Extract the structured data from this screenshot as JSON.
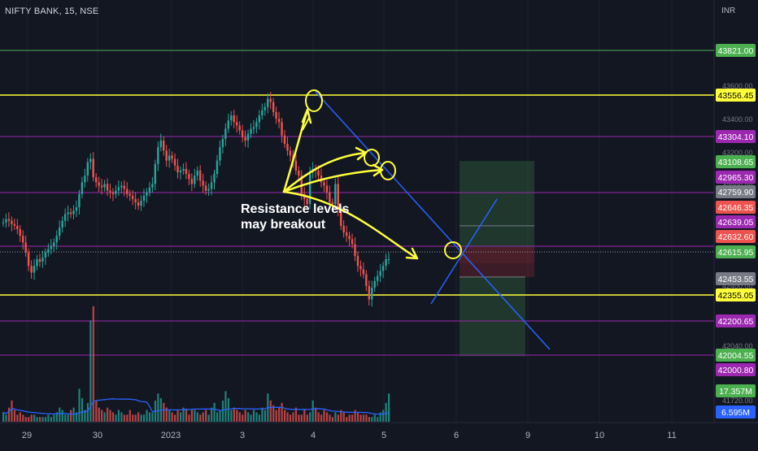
{
  "header": {
    "symbol": "NIFTY BANK, 15, NSE",
    "currency": "INR"
  },
  "annotation": {
    "line1": "Resistance levels",
    "line2": "may breakout"
  },
  "colors": {
    "background": "#131722",
    "up": "#26a69a",
    "down": "#ef5350",
    "yellow": "#ffff3b",
    "purple": "#9c27b0",
    "green": "#4caf50",
    "trend": "#2962ff",
    "volume_ma": "#2962ff"
  },
  "chart_data": {
    "type": "candlestick",
    "title": "NIFTY BANK, 15, NSE",
    "ylim": [
      41690,
      43690
    ],
    "x_ticks": [
      "29",
      "30",
      "2023",
      "3",
      "4",
      "5",
      "6",
      "9",
      "10",
      "11"
    ],
    "y_ticks": [
      "43600.00",
      "43400.00",
      "43200.00",
      "43000.00",
      "42800.00",
      "42600.00",
      "42400.00",
      "42200.00",
      "42040.00",
      "41880.00",
      "41720.00"
    ],
    "price_labels": [
      {
        "value": "43821.00",
        "color": "#4caf50",
        "text_color": "#ffffff",
        "line": "#4caf50"
      },
      {
        "value": "43556.45",
        "color": "#ffff3b",
        "text_color": "#000000",
        "line": "#ffff3b"
      },
      {
        "value": "43304.10",
        "color": "#9c27b0",
        "text_color": "#ffffff",
        "line": "#9c27b0"
      },
      {
        "value": "43108.65",
        "color": "#4caf50",
        "text_color": "#ffffff",
        "line": null
      },
      {
        "value": "42965.30",
        "color": "#9c27b0",
        "text_color": "#ffffff",
        "line": "#9c27b0"
      },
      {
        "value": "42759.90",
        "color": "#787b86",
        "text_color": "#ffffff",
        "line": null
      },
      {
        "value": "42646.35",
        "color": "#ef5350",
        "text_color": "#ffffff",
        "line": null
      },
      {
        "value": "42639.05",
        "color": "#9c27b0",
        "text_color": "#ffffff",
        "line": null
      },
      {
        "value": "42632.60",
        "color": "#ef5350",
        "text_color": "#ffffff",
        "line": null
      },
      {
        "value": "42615.95",
        "color": "#4caf50",
        "text_color": "#ffffff",
        "line": "#9c27b0"
      },
      {
        "value": "42453.55",
        "color": "#787b86",
        "text_color": "#ffffff",
        "line": null
      },
      {
        "value": "42355.05",
        "color": "#ffff3b",
        "text_color": "#000000",
        "line": "#ffff3b"
      },
      {
        "value": "42200.65",
        "color": "#9c27b0",
        "text_color": "#ffffff",
        "line": "#9c27b0"
      },
      {
        "value": "42004.55",
        "color": "#4caf50",
        "text_color": "#ffffff",
        "line": "#9c27b0"
      },
      {
        "value": "42000.80",
        "color": "#9c27b0",
        "text_color": "#ffffff",
        "line": null
      }
    ],
    "volume_labels": [
      {
        "value": "17.357M",
        "color": "#4caf50"
      },
      {
        "value": "6.595M",
        "color": "#2962ff"
      }
    ],
    "position_tool": {
      "entry": 42632.6,
      "stop": 42453.55,
      "target_high": 43108.65,
      "target_low": 42004.55
    },
    "candles": {
      "start_x": 4,
      "step": 3.46,
      "closes": [
        42780,
        42800,
        42790,
        42770,
        42760,
        42740,
        42700,
        42660,
        42600,
        42520,
        42480,
        42520,
        42560,
        42545,
        42570,
        42600,
        42620,
        42640,
        42660,
        42700,
        42750,
        42790,
        42830,
        42840,
        42830,
        42850,
        42870,
        42950,
        43020,
        43060,
        43140,
        43160,
        43050,
        43020,
        43000,
        42990,
        43010,
        42970,
        42960,
        42950,
        42970,
        42990,
        43000,
        42980,
        42950,
        42940,
        42920,
        42900,
        42880,
        42910,
        42940,
        42960,
        42990,
        43010,
        43130,
        43230,
        43270,
        43210,
        43150,
        43180,
        43160,
        43120,
        43080,
        43090,
        43100,
        43070,
        43040,
        43010,
        43060,
        43090,
        43030,
        43000,
        42970,
        42980,
        43020,
        43070,
        43150,
        43230,
        43280,
        43340,
        43390,
        43420,
        43380,
        43360,
        43330,
        43290,
        43270,
        43310,
        43340,
        43350,
        43380,
        43420,
        43450,
        43470,
        43520,
        43500,
        43440,
        43400,
        43380,
        43300,
        43250,
        43210,
        43180,
        43150,
        43090,
        43060,
        42950,
        42920,
        42890,
        43080,
        43100,
        43090,
        43060,
        43020,
        43000,
        42960,
        42900,
        42890,
        43010,
        42860,
        42760,
        42720,
        42700,
        42680,
        42650,
        42580,
        42520,
        42500,
        42470,
        42400,
        42320,
        42390,
        42430,
        42460,
        42490,
        42520,
        42560,
        42560
      ],
      "opens_delta": [
        0,
        -20,
        10,
        20,
        10,
        20,
        40,
        40,
        60,
        80,
        40,
        -40,
        -40,
        15,
        -25,
        -30,
        -20,
        -20,
        -20,
        -40,
        -50,
        -40,
        -40,
        -10,
        10,
        -20,
        -20,
        -80,
        -70,
        -40,
        -80,
        -20,
        110,
        30,
        20,
        10,
        -20,
        40,
        10,
        10,
        -20,
        -20,
        -10,
        20,
        30,
        10,
        20,
        20,
        20,
        -30,
        -30,
        -20,
        -30,
        -20,
        -120,
        -100,
        -40,
        60,
        60,
        -30,
        20,
        40,
        40,
        -10,
        -10,
        30,
        30,
        30,
        -50,
        -30,
        60,
        30,
        30,
        -10,
        -40,
        -50,
        -80,
        -80,
        -50,
        -60,
        -50,
        -30,
        40,
        20,
        30,
        40,
        20,
        -40,
        -30,
        -10,
        -30,
        -40,
        -30,
        -20,
        -50,
        20,
        60,
        40,
        20,
        80,
        50,
        40,
        30,
        30,
        60,
        30,
        110,
        30,
        30,
        -190,
        -20,
        10,
        30,
        40,
        20,
        40,
        60,
        10,
        -120,
        150,
        100,
        40,
        20,
        20,
        30,
        70,
        60,
        20,
        30,
        70,
        80,
        -70,
        -40,
        -30,
        -30,
        -30,
        -40,
        0
      ],
      "volumes": [
        4,
        3,
        6,
        9,
        5,
        3,
        4,
        3,
        2,
        2,
        3,
        3,
        2,
        2,
        2,
        2,
        3,
        2,
        3,
        4,
        6,
        5,
        3,
        3,
        5,
        6,
        4,
        14,
        10,
        5,
        8,
        43,
        49,
        9,
        6,
        5,
        4,
        6,
        5,
        4,
        3,
        5,
        4,
        3,
        3,
        5,
        3,
        3,
        4,
        3,
        3,
        5,
        4,
        4,
        9,
        12,
        10,
        8,
        6,
        5,
        4,
        3,
        5,
        4,
        6,
        5,
        3,
        5,
        5,
        4,
        3,
        4,
        5,
        3,
        6,
        8,
        4,
        5,
        9,
        13,
        10,
        5,
        6,
        5,
        4,
        3,
        5,
        4,
        3,
        5,
        4,
        3,
        6,
        5,
        12,
        9,
        7,
        5,
        6,
        8,
        5,
        4,
        3,
        4,
        6,
        3,
        3,
        5,
        3,
        4,
        9,
        6,
        4,
        3,
        5,
        4,
        3,
        2,
        4,
        3,
        5,
        4,
        2,
        3,
        3,
        5,
        4,
        3,
        3,
        3,
        2,
        2,
        3,
        2,
        4,
        5,
        8,
        12
      ]
    }
  }
}
